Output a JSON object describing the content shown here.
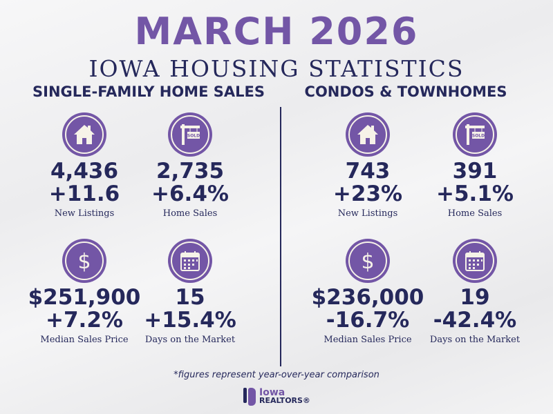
{
  "title": "MARCH 2026",
  "subtitle": "IOWA HOUSING STATISTICS",
  "colors": {
    "purple": "#7356a6",
    "navy": "#25285b"
  },
  "sections": [
    {
      "heading": "SINGLE-FAMILY HOME SALES",
      "metrics": [
        {
          "icon": "house-icon",
          "value": "4,436",
          "change": "+11.6",
          "label": "New Listings"
        },
        {
          "icon": "sold-sign-icon",
          "value": "2,735",
          "change": "+6.4%",
          "label": "Home Sales"
        },
        {
          "icon": "dollar-icon",
          "value": "$251,900",
          "change": "+7.2%",
          "label": "Median Sales Price"
        },
        {
          "icon": "calendar-icon",
          "value": "15",
          "change": "+15.4%",
          "label": "Days on the Market"
        }
      ]
    },
    {
      "heading": "CONDOS & TOWNHOMES",
      "metrics": [
        {
          "icon": "house-icon",
          "value": "743",
          "change": "+23%",
          "label": "New Listings"
        },
        {
          "icon": "sold-sign-icon",
          "value": "391",
          "change": "+5.1%",
          "label": "Home Sales"
        },
        {
          "icon": "dollar-icon",
          "value": "$236,000",
          "change": "-16.7%",
          "label": "Median Sales Price"
        },
        {
          "icon": "calendar-icon",
          "value": "19",
          "change": "-42.4%",
          "label": "Days on the Market"
        }
      ]
    }
  ],
  "footnote": "*figures represent year-over-year comparison",
  "logo": {
    "line1": "Iowa",
    "line2": "REALTORS®"
  }
}
